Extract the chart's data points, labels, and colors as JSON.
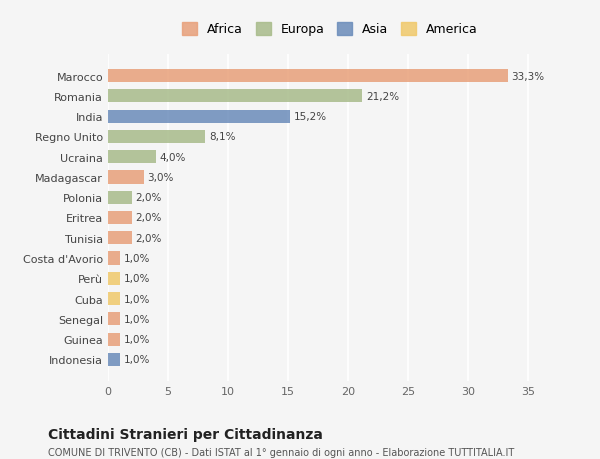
{
  "categories": [
    "Indonesia",
    "Guinea",
    "Senegal",
    "Cuba",
    "Perù",
    "Costa d'Avorio",
    "Tunisia",
    "Eritrea",
    "Polonia",
    "Madagascar",
    "Ucraina",
    "Regno Unito",
    "India",
    "Romania",
    "Marocco"
  ],
  "values": [
    1.0,
    1.0,
    1.0,
    1.0,
    1.0,
    1.0,
    2.0,
    2.0,
    2.0,
    3.0,
    4.0,
    8.1,
    15.2,
    21.2,
    33.3
  ],
  "colors": [
    "#6b8cba",
    "#e8a07a",
    "#e8a07a",
    "#f0c96b",
    "#f0c96b",
    "#e8a07a",
    "#e8a07a",
    "#e8a07a",
    "#a8bb8a",
    "#e8a07a",
    "#a8bb8a",
    "#a8bb8a",
    "#6b8cba",
    "#a8bb8a",
    "#e8a07a"
  ],
  "labels": [
    "1,0%",
    "1,0%",
    "1,0%",
    "1,0%",
    "1,0%",
    "1,0%",
    "2,0%",
    "2,0%",
    "2,0%",
    "3,0%",
    "4,0%",
    "8,1%",
    "15,2%",
    "21,2%",
    "33,3%"
  ],
  "legend": [
    {
      "label": "Africa",
      "color": "#e8a07a"
    },
    {
      "label": "Europa",
      "color": "#a8bb8a"
    },
    {
      "label": "Asia",
      "color": "#6b8cba"
    },
    {
      "label": "America",
      "color": "#f0c96b"
    }
  ],
  "xlim": [
    0,
    37
  ],
  "xticks": [
    0,
    5,
    10,
    15,
    20,
    25,
    30,
    35
  ],
  "title": "Cittadini Stranieri per Cittadinanza",
  "subtitle": "COMUNE DI TRIVENTO (CB) - Dati ISTAT al 1° gennaio di ogni anno - Elaborazione TUTTITALIA.IT",
  "bg_color": "#f5f5f5",
  "bar_alpha": 0.85
}
